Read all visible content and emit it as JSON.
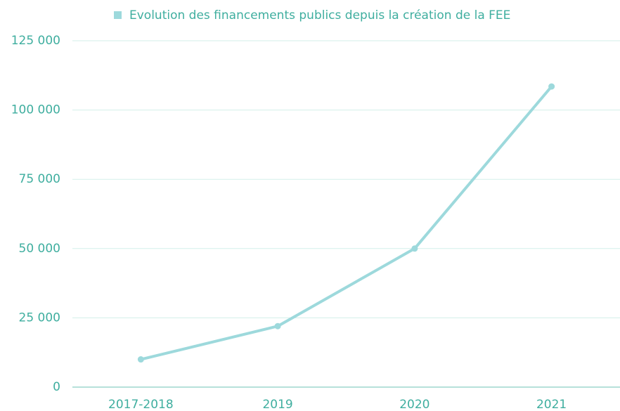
{
  "chart_data": {
    "type": "line",
    "categories": [
      "2017-2018",
      "2019",
      "2020",
      "2021"
    ],
    "series": [
      {
        "name": "Evolution des financements publics depuis la création de la FEE",
        "color": "#9dd9dc",
        "values": [
          10000,
          22000,
          50000,
          108500
        ]
      }
    ],
    "ylim": [
      0,
      125000
    ],
    "yticks": [
      0,
      {
        "value": 25000,
        "label": "25 000"
      },
      {
        "value": 50000,
        "label": "50 000"
      },
      {
        "value": 75000,
        "label": "75 000"
      },
      {
        "value": 100000,
        "label": "100 000"
      },
      {
        "value": 125000,
        "label": "125 000"
      }
    ],
    "grid": true,
    "legend": "top"
  }
}
